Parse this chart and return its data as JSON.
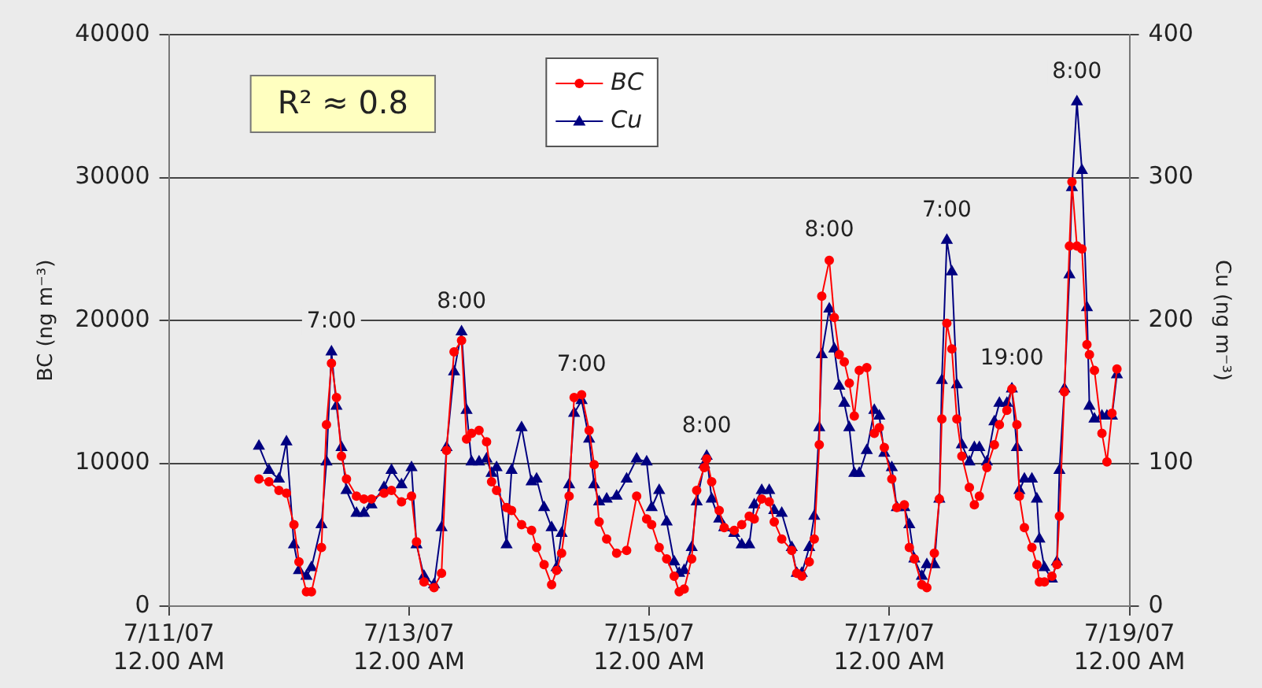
{
  "chart_data": {
    "type": "line",
    "ylabel": "BC (ng m⁻³)",
    "y2label": "Cu (ng m⁻³)",
    "x": [
      "--07-11T18:00",
      "--07-11T20:00",
      "--07-11T22:00",
      "--07-11T23:30",
      "--07-12T01:00",
      "--07-12T02:00",
      "--07-12T03:30",
      "--07-12T04:30",
      "--07-12T06:30",
      "--07-12T07:30",
      "--07-12T08:30",
      "--07-12T09:30",
      "--07-12T10:30",
      "--07-12T11:30",
      "--07-12T13:30",
      "--07-12T15:00",
      "--07-12T16:30",
      "--07-12T19:00",
      "--07-12T20:30",
      "--07-12T22:30",
      "--07-13T00:30",
      "--07-13T01:30",
      "--07-13T03:00",
      "--07-13T05:00",
      "--07-13T06:30",
      "--07-13T07:30",
      "--07-13T09:00",
      "--07-13T10:30",
      "--07-13T11:30",
      "--07-13T12:30",
      "--07-13T14:00",
      "--07-13T15:30",
      "--07-13T16:30",
      "--07-13T17:30",
      "--07-13T19:30",
      "--07-13T20:30",
      "--07-13T22:30",
      "--07-14T00:30",
      "--07-14T01:30",
      "--07-14T03:00",
      "--07-14T04:30",
      "--07-14T05:30",
      "--07-14T06:30",
      "--07-14T08:00",
      "--07-14T09:00",
      "--07-14T10:30",
      "--07-14T12:00",
      "--07-14T13:00",
      "--07-14T14:00",
      "--07-14T15:30",
      "--07-14T17:30",
      "--07-14T19:30",
      "--07-14T21:30",
      "--07-14T23:30",
      "--07-15T00:30",
      "--07-15T02:00",
      "--07-15T03:30",
      "--07-15T05:00",
      "--07-15T06:00",
      "--07-15T07:00",
      "--07-15T08:30",
      "--07-15T09:30",
      "--07-15T11:00",
      "--07-15T11:30",
      "--07-15T12:30",
      "--07-15T14:00",
      "--07-15T15:00",
      "--07-15T17:00",
      "--07-15T18:30",
      "--07-15T20:00",
      "--07-15T21:00",
      "--07-15T22:30",
      "--07-16T00:00",
      "--07-16T01:00",
      "--07-16T02:30",
      "--07-16T04:30",
      "--07-16T05:30",
      "--07-16T06:30",
      "--07-16T08:00",
      "--07-16T09:00",
      "--07-16T10:00",
      "--07-16T10:30",
      "--07-16T12:00",
      "--07-16T13:00",
      "--07-16T14:00",
      "--07-16T15:00",
      "--07-16T16:00",
      "--07-16T17:00",
      "--07-16T18:00",
      "--07-16T19:30",
      "--07-16T21:00",
      "--07-16T22:00",
      "--07-16T23:00",
      "--07-17T00:30",
      "--07-17T01:30",
      "--07-17T03:00",
      "--07-17T04:00",
      "--07-17T05:00",
      "--07-17T06:30",
      "--07-17T07:30",
      "--07-17T09:00",
      "--07-17T10:00",
      "--07-17T10:30",
      "--07-17T11:30",
      "--07-17T12:30",
      "--07-17T13:30",
      "--07-17T14:30",
      "--07-17T16:00",
      "--07-17T17:00",
      "--07-17T18:00",
      "--07-17T19:30",
      "--07-17T21:00",
      "--07-17T22:00",
      "--07-17T23:30",
      "--07-18T00:30",
      "--07-18T01:30",
      "--07-18T02:00",
      "--07-18T03:00",
      "--07-18T04:30",
      "--07-18T05:30",
      "--07-18T06:00",
      "--07-18T07:00",
      "--07-18T08:30",
      "--07-18T09:30",
      "--07-18T10:00",
      "--07-18T11:00",
      "--07-18T12:00",
      "--07-18T12:30",
      "--07-18T13:30",
      "--07-18T14:30",
      "--07-18T15:30",
      "--07-18T16:00",
      "--07-18T17:00",
      "--07-18T18:30",
      "--07-18T19:30",
      "--07-18T20:30",
      "--07-18T21:30"
    ],
    "series": [
      {
        "name": "BC",
        "color": "#ff0000",
        "marker": "circle",
        "values": [
          8900,
          8700,
          8100,
          7900,
          5700,
          3100,
          1000,
          1000,
          4100,
          12700,
          17000,
          14600,
          10500,
          8900,
          7700,
          7500,
          7500,
          7900,
          8100,
          7300,
          7700,
          4500,
          1700,
          1300,
          2300,
          10900,
          17800,
          18600,
          11700,
          12100,
          12300,
          11500,
          8700,
          8100,
          6900,
          6700,
          5700,
          5300,
          4100,
          2900,
          1500,
          2500,
          3700,
          7700,
          14600,
          14800,
          12300,
          9900,
          5900,
          4700,
          3700,
          3900,
          7700,
          6100,
          5700,
          4100,
          3300,
          2100,
          1000,
          1200,
          3300,
          8100,
          9700,
          10300,
          8700,
          6700,
          5500,
          5300,
          5700,
          6300,
          6100,
          7500,
          7300,
          5900,
          4700,
          3900,
          2300,
          2100,
          3100,
          4700,
          11300,
          21700,
          24200,
          20200,
          17600,
          17100,
          15600,
          13300,
          16500,
          16700,
          12100,
          12500,
          11100,
          8900,
          6900,
          7100,
          4100,
          3300,
          1500,
          1300,
          3700,
          7500,
          13100,
          19800,
          18000,
          13100,
          10500,
          8300,
          7100,
          7700,
          9700,
          11300,
          12700,
          13700,
          15200,
          12700,
          7700,
          5500,
          4100,
          2900,
          1700,
          1700,
          2100,
          2900,
          6300,
          15000,
          25200,
          29700,
          25200,
          25000,
          18300,
          17600,
          16500,
          12100,
          10100,
          13500,
          16600
        ]
      },
      {
        "name": "Cu",
        "color": "#000080",
        "marker": "triangle",
        "axis": "y2",
        "values": [
          112,
          95,
          89,
          115,
          43,
          25,
          21,
          27,
          57,
          101,
          178,
          140,
          111,
          81,
          65,
          65,
          71,
          83,
          95,
          85,
          97,
          43,
          21,
          15,
          55,
          111,
          164,
          192,
          137,
          101,
          101,
          103,
          93,
          97,
          43,
          95,
          125,
          87,
          89,
          69,
          55,
          27,
          51,
          85,
          135,
          144,
          117,
          85,
          73,
          75,
          77,
          89,
          103,
          101,
          69,
          81,
          59,
          31,
          23,
          25,
          41,
          73,
          99,
          105,
          75,
          61,
          55,
          51,
          43,
          43,
          71,
          81,
          81,
          67,
          65,
          41,
          23,
          23,
          41,
          63,
          125,
          176,
          208,
          180,
          154,
          142,
          125,
          93,
          93,
          109,
          137,
          133,
          107,
          97,
          69,
          69,
          57,
          33,
          21,
          29,
          29,
          75,
          158,
          256,
          234,
          155,
          113,
          101,
          111,
          111,
          101,
          129,
          142,
          142,
          152,
          111,
          81,
          89,
          89,
          75,
          47,
          27,
          19,
          31,
          95,
          152,
          232,
          293,
          353,
          305,
          209,
          140,
          131,
          133,
          133,
          133,
          162
        ]
      }
    ],
    "xlim": [
      "--07-11",
      "--07-19"
    ],
    "xticks": [
      {
        "value": "--07-11",
        "label": "7/11/07 12.00 AM"
      },
      {
        "value": "--07-13",
        "label": "7/13/07 12.00 AM"
      },
      {
        "value": "--07-15",
        "label": "7/15/07 12.00 AM"
      },
      {
        "value": "--07-17",
        "label": "7/17/07 12.00 AM"
      },
      {
        "value": "--07-19",
        "label": "7/19/07 12.00 AM"
      }
    ],
    "ylim": [
      0,
      40000
    ],
    "yticks": [
      0,
      10000,
      20000,
      30000,
      40000
    ],
    "y2lim": [
      0,
      400
    ],
    "y2ticks": [
      0,
      100,
      200,
      300,
      400
    ],
    "grid": "y",
    "legend": "top",
    "annotations": [
      "R² ≈ 0.8",
      {
        "text": "7:00",
        "x": "--07-12T08:30",
        "y": 17800
      },
      {
        "text": "8:00",
        "x": "--07-13T10:30",
        "y": 19200
      },
      {
        "text": "7:00",
        "x": "--07-14T10:30",
        "y": 14800
      },
      {
        "text": "8:00",
        "x": "--07-15T11:30",
        "y": 10500
      },
      {
        "text": "8:00",
        "x": "--07-16T12:00",
        "y": 24200
      },
      {
        "text": "7:00",
        "x": "--07-17T11:30",
        "y": 25600
      },
      {
        "text": "19:00",
        "x": "--07-18T00:30",
        "y": 15200
      },
      {
        "text": "8:00",
        "x": "--07-18T13:30",
        "y": 35300
      }
    ]
  }
}
